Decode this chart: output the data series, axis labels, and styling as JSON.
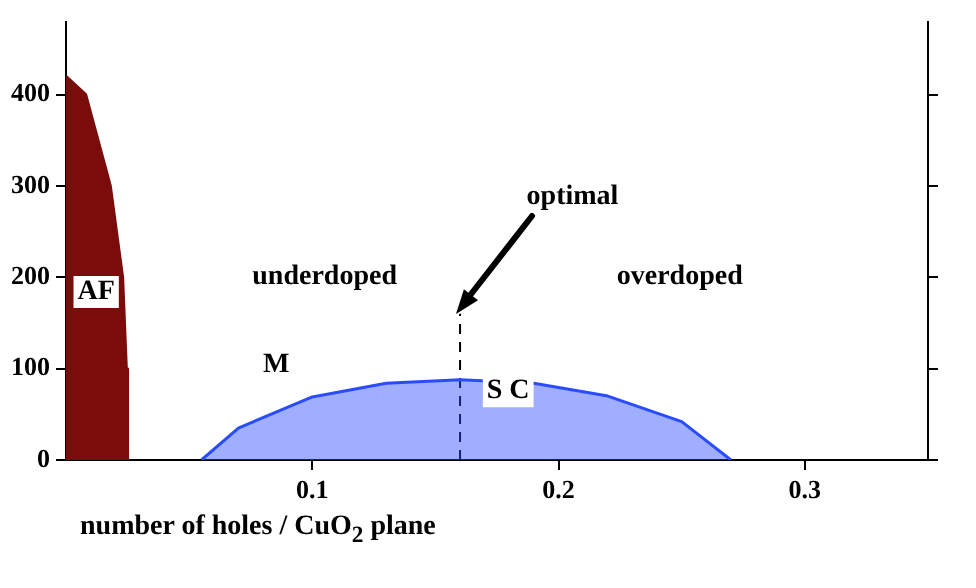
{
  "chart_data": {
    "type": "area",
    "xlabel": "number of holes / CuO$_{2}$ plane",
    "xlim": [
      0,
      0.35
    ],
    "xticks": [
      0.1,
      0.2,
      0.3
    ],
    "ylim": [
      0,
      480
    ],
    "yticks": [
      0,
      100,
      200,
      300,
      400
    ],
    "grid": false,
    "legend": false,
    "series": [
      {
        "color": "#7a0c0c",
        "x": [
          0,
          0.008,
          0.018,
          0.023,
          0.0245,
          0.025
        ],
        "values": [
          420,
          400,
          300,
          200,
          100,
          0
        ]
      },
      {
        "color": "#2a4cff",
        "x": [
          0.055,
          0.07,
          0.1,
          0.13,
          0.16,
          0.19,
          0.22,
          0.25,
          0.27
        ],
        "values": [
          0,
          35,
          69,
          84,
          88,
          84,
          70,
          42,
          0
        ]
      },
      {
        "type": "line",
        "color": "#000000",
        "line_style": "dashed",
        "x": [
          0.16,
          0.16
        ],
        "values": [
          0,
          160
        ]
      }
    ],
    "annotations": [
      "optimal",
      "AF",
      "underdoped",
      "overdoped",
      "M",
      "S C"
    ]
  }
}
